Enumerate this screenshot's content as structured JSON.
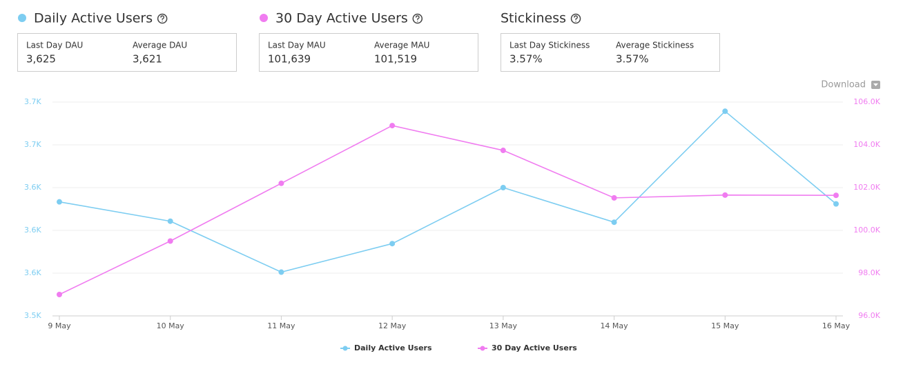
{
  "panels": [
    {
      "title": "Daily Active Users",
      "color": "#7dcdf1",
      "stats": [
        {
          "label": "Last Day DAU",
          "value": "3,625"
        },
        {
          "label": "Average DAU",
          "value": "3,621"
        }
      ]
    },
    {
      "title": "30 Day Active Users",
      "color": "#f07cf0",
      "stats": [
        {
          "label": "Last Day MAU",
          "value": "101,639"
        },
        {
          "label": "Average MAU",
          "value": "101,519"
        }
      ]
    },
    {
      "title": "Stickiness",
      "stats": [
        {
          "label": "Last Day Stickiness",
          "value": "3.57%"
        },
        {
          "label": "Average Stickiness",
          "value": "3.57%"
        }
      ]
    }
  ],
  "download_label": "Download",
  "chart_data": {
    "type": "line",
    "x": [
      "9 May",
      "10 May",
      "11 May",
      "12 May",
      "13 May",
      "14 May",
      "15 May",
      "16 May"
    ],
    "series": [
      {
        "name": "Daily Active Users",
        "color": "#7dcdf1",
        "values": [
          3627,
          3608,
          3558,
          3586,
          3641,
          3607,
          3716,
          3625
        ]
      },
      {
        "name": "30 Day Active Users",
        "color": "#f07cf0",
        "axis": "y2",
        "values": [
          97000,
          99500,
          102200,
          104900,
          103740,
          101520,
          101650,
          101639
        ]
      }
    ],
    "ylim": [
      3515,
      3725
    ],
    "yticks": [
      {
        "value": 3515,
        "label": "3.5K"
      },
      {
        "value": 3557,
        "label": "3.6K"
      },
      {
        "value": 3599,
        "label": "3.6K"
      },
      {
        "value": 3641,
        "label": "3.6K"
      },
      {
        "value": 3683,
        "label": "3.7K"
      },
      {
        "value": 3725,
        "label": "3.7K"
      }
    ],
    "y2lim": [
      96000,
      106000
    ],
    "y2ticks": [
      {
        "value": 96000,
        "label": "96.0K"
      },
      {
        "value": 98000,
        "label": "98.0K"
      },
      {
        "value": 100000,
        "label": "100.0K"
      },
      {
        "value": 102000,
        "label": "102.0K"
      },
      {
        "value": 104000,
        "label": "104.0K"
      },
      {
        "value": 106000,
        "label": "106.0K"
      }
    ],
    "grid": true,
    "legend": "bottom"
  }
}
